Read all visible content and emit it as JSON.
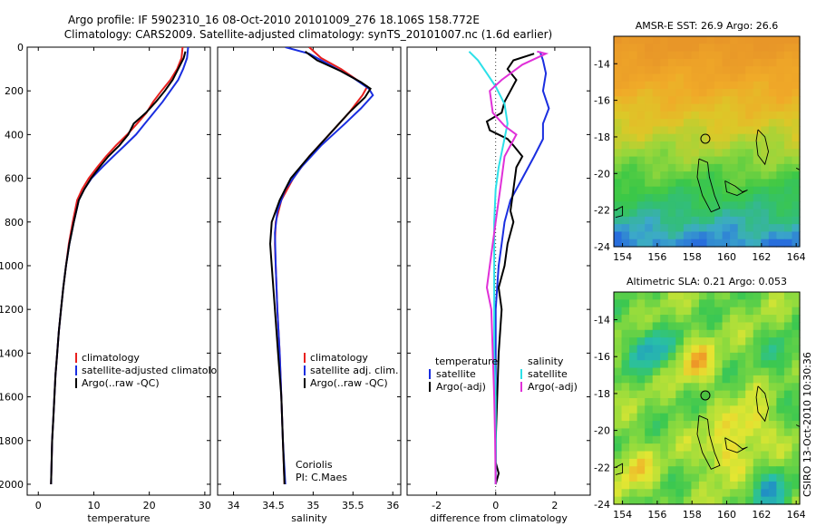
{
  "title": {
    "line1": "Argo profile: IF 5902310_16 08-Oct-2010 20101009_276 18.106S 158.772E",
    "line2": "Climatology: CARS2009. Satellite-adjusted climatology: synTS_20101007.nc (1.6d earlier)"
  },
  "side_text": "CSIRO 13-Oct-2010 10:30:36",
  "colors": {
    "red": "#e8201e",
    "blue": "#1a2ee0",
    "black": "#000000",
    "cyan": "#2ce0e8",
    "magenta": "#e030d8"
  },
  "chart_data": [
    {
      "type": "line",
      "panel": "temperature",
      "xlabel": "temperature",
      "ylabel": "",
      "xlim": [
        -2,
        31
      ],
      "ylim": [
        2050,
        0
      ],
      "xticks": [
        "0",
        "10",
        "20",
        "30"
      ],
      "yticks": [
        "0",
        "200",
        "400",
        "600",
        "800",
        "1000",
        "1200",
        "1400",
        "1600",
        "1800",
        "2000"
      ],
      "legend": [
        "climatology",
        "satellite-adjusted climatology",
        "Argo(..raw -QC)"
      ],
      "series": [
        {
          "name": "climatology",
          "color": "red",
          "points": [
            [
              26,
              0
            ],
            [
              25.8,
              50
            ],
            [
              25,
              100
            ],
            [
              23.8,
              150
            ],
            [
              22.2,
              200
            ],
            [
              20.7,
              250
            ],
            [
              19.5,
              300
            ],
            [
              17.8,
              350
            ],
            [
              16,
              400
            ],
            [
              14,
              450
            ],
            [
              12.2,
              500
            ],
            [
              10.6,
              550
            ],
            [
              9.1,
              600
            ],
            [
              7.9,
              650
            ],
            [
              7,
              700
            ],
            [
              6.2,
              800
            ],
            [
              5.5,
              900
            ],
            [
              5,
              1000
            ],
            [
              4.5,
              1100
            ],
            [
              4.1,
              1200
            ],
            [
              3.7,
              1300
            ],
            [
              3.4,
              1400
            ],
            [
              3.1,
              1500
            ],
            [
              2.9,
              1600
            ],
            [
              2.7,
              1700
            ],
            [
              2.5,
              1800
            ],
            [
              2.4,
              1900
            ],
            [
              2.3,
              2000
            ]
          ]
        },
        {
          "name": "satellite-adjusted climatology",
          "color": "blue",
          "points": [
            [
              27,
              0
            ],
            [
              26.8,
              50
            ],
            [
              26.1,
              100
            ],
            [
              25.2,
              150
            ],
            [
              23.8,
              200
            ],
            [
              22.4,
              250
            ],
            [
              20.8,
              300
            ],
            [
              19.2,
              350
            ],
            [
              17.6,
              400
            ],
            [
              15.6,
              450
            ],
            [
              13.5,
              500
            ],
            [
              11.5,
              550
            ],
            [
              9.6,
              600
            ],
            [
              8.3,
              650
            ],
            [
              7.3,
              700
            ],
            [
              6.4,
              800
            ],
            [
              5.6,
              900
            ],
            [
              5,
              1000
            ],
            [
              4.5,
              1100
            ],
            [
              4.1,
              1200
            ],
            [
              3.7,
              1300
            ],
            [
              3.4,
              1400
            ],
            [
              3.1,
              1500
            ],
            [
              2.9,
              1600
            ],
            [
              2.7,
              1700
            ],
            [
              2.5,
              1800
            ],
            [
              2.4,
              1900
            ],
            [
              2.3,
              2000
            ]
          ]
        },
        {
          "name": "Argo(..raw -QC)",
          "color": "black",
          "points": [
            [
              26.5,
              20
            ],
            [
              26.2,
              50
            ],
            [
              25.2,
              100
            ],
            [
              24.2,
              150
            ],
            [
              22.8,
              200
            ],
            [
              21.2,
              250
            ],
            [
              19.4,
              300
            ],
            [
              17.2,
              350
            ],
            [
              16.2,
              400
            ],
            [
              14.6,
              450
            ],
            [
              12.6,
              500
            ],
            [
              11,
              550
            ],
            [
              9.5,
              600
            ],
            [
              8.3,
              650
            ],
            [
              7.3,
              700
            ],
            [
              6.4,
              800
            ],
            [
              5.6,
              900
            ],
            [
              5,
              1000
            ],
            [
              4.5,
              1100
            ],
            [
              4.1,
              1200
            ],
            [
              3.7,
              1300
            ],
            [
              3.4,
              1400
            ],
            [
              3.1,
              1500
            ],
            [
              2.9,
              1600
            ],
            [
              2.7,
              1700
            ],
            [
              2.5,
              1800
            ],
            [
              2.4,
              1900
            ],
            [
              2.3,
              2000
            ]
          ]
        }
      ]
    },
    {
      "type": "line",
      "panel": "salinity",
      "xlabel": "salinity",
      "ylabel": "",
      "xlim": [
        33.8,
        36.1
      ],
      "ylim": [
        2050,
        0
      ],
      "xticks": [
        "34",
        "34.5",
        "35",
        "35.5",
        "36"
      ],
      "legend": [
        "climatology",
        "satellite adj. clim.",
        "Argo(..raw -QC)"
      ],
      "annotation": [
        "Coriolis",
        "PI: C.Maes"
      ],
      "series": [
        {
          "name": "climatology",
          "color": "red",
          "points": [
            [
              34.95,
              0
            ],
            [
              35.1,
              50
            ],
            [
              35.35,
              100
            ],
            [
              35.55,
              150
            ],
            [
              35.68,
              180
            ],
            [
              35.62,
              220
            ],
            [
              35.45,
              300
            ],
            [
              35.2,
              400
            ],
            [
              34.95,
              500
            ],
            [
              34.75,
              600
            ],
            [
              34.6,
              700
            ],
            [
              34.53,
              800
            ],
            [
              34.52,
              900
            ],
            [
              34.53,
              1000
            ],
            [
              34.55,
              1200
            ],
            [
              34.58,
              1400
            ],
            [
              34.6,
              1600
            ],
            [
              34.62,
              1800
            ],
            [
              34.64,
              2000
            ]
          ]
        },
        {
          "name": "satellite adj. clim.",
          "color": "blue",
          "points": [
            [
              34.65,
              0
            ],
            [
              34.95,
              30
            ],
            [
              35.2,
              80
            ],
            [
              35.5,
              140
            ],
            [
              35.7,
              190
            ],
            [
              35.75,
              220
            ],
            [
              35.6,
              280
            ],
            [
              35.4,
              350
            ],
            [
              35.1,
              450
            ],
            [
              34.85,
              550
            ],
            [
              34.65,
              650
            ],
            [
              34.55,
              750
            ],
            [
              34.52,
              850
            ],
            [
              34.53,
              1000
            ],
            [
              34.55,
              1200
            ],
            [
              34.58,
              1400
            ],
            [
              34.6,
              1600
            ],
            [
              34.62,
              1800
            ],
            [
              34.65,
              2000
            ]
          ]
        },
        {
          "name": "Argo(..raw -QC)",
          "color": "black",
          "points": [
            [
              34.9,
              20
            ],
            [
              35.05,
              60
            ],
            [
              35.35,
              110
            ],
            [
              35.6,
              160
            ],
            [
              35.72,
              190
            ],
            [
              35.65,
              230
            ],
            [
              35.45,
              300
            ],
            [
              35.2,
              400
            ],
            [
              34.95,
              500
            ],
            [
              34.72,
              600
            ],
            [
              34.58,
              700
            ],
            [
              34.48,
              800
            ],
            [
              34.46,
              900
            ],
            [
              34.48,
              1000
            ],
            [
              34.52,
              1200
            ],
            [
              34.56,
              1400
            ],
            [
              34.6,
              1600
            ],
            [
              34.62,
              1800
            ],
            [
              34.64,
              2000
            ]
          ]
        }
      ]
    },
    {
      "type": "line",
      "panel": "difference",
      "xlabel": "difference from climatology",
      "ylabel": "",
      "xlim": [
        -3,
        3.2
      ],
      "ylim": [
        2050,
        0
      ],
      "xticks": [
        "-2",
        "0",
        "2"
      ],
      "legend_left_title": "temperature",
      "legend_right_title": "salinity",
      "legend_left": [
        "satellite",
        "Argo(-adj)"
      ],
      "legend_right": [
        "satellite",
        "Argo(-adj)"
      ],
      "series": [
        {
          "name": "satellite",
          "group": "temperature",
          "color": "blue",
          "points": [
            [
              1.5,
              20
            ],
            [
              1.6,
              60
            ],
            [
              1.7,
              120
            ],
            [
              1.6,
              200
            ],
            [
              1.8,
              280
            ],
            [
              1.6,
              350
            ],
            [
              1.6,
              420
            ],
            [
              1.3,
              500
            ],
            [
              0.9,
              600
            ],
            [
              0.5,
              700
            ],
            [
              0.3,
              800
            ],
            [
              0.2,
              900
            ],
            [
              0.1,
              1000
            ],
            [
              0,
              1200
            ],
            [
              0,
              1400
            ],
            [
              0,
              1600
            ],
            [
              0,
              1800
            ],
            [
              0,
              2000
            ]
          ]
        },
        {
          "name": "Argo(-adj)",
          "group": "temperature",
          "color": "black",
          "points": [
            [
              1.3,
              30
            ],
            [
              0.6,
              60
            ],
            [
              0.4,
              100
            ],
            [
              0.7,
              150
            ],
            [
              0.5,
              200
            ],
            [
              0.3,
              250
            ],
            [
              0.2,
              300
            ],
            [
              -0.3,
              340
            ],
            [
              -0.2,
              380
            ],
            [
              0.4,
              420
            ],
            [
              0.6,
              450
            ],
            [
              0.9,
              500
            ],
            [
              0.7,
              550
            ],
            [
              0.6,
              650
            ],
            [
              0.5,
              750
            ],
            [
              0.6,
              800
            ],
            [
              0.4,
              900
            ],
            [
              0.3,
              1000
            ],
            [
              0.1,
              1100
            ],
            [
              0.2,
              1200
            ],
            [
              0.1,
              1400
            ],
            [
              0.05,
              1600
            ],
            [
              0,
              1800
            ],
            [
              0,
              1900
            ],
            [
              0.1,
              1950
            ],
            [
              0,
              2000
            ]
          ]
        },
        {
          "name": "satellite",
          "group": "salinity",
          "color": "cyan",
          "points": [
            [
              -0.9,
              20
            ],
            [
              -0.6,
              60
            ],
            [
              -0.3,
              120
            ],
            [
              0,
              180
            ],
            [
              0.3,
              260
            ],
            [
              0.4,
              350
            ],
            [
              0.25,
              450
            ],
            [
              0.1,
              550
            ],
            [
              0,
              650
            ],
            [
              -0.05,
              800
            ],
            [
              -0.05,
              1000
            ],
            [
              -0.05,
              1200
            ],
            [
              -0.05,
              1400
            ],
            [
              0,
              1600
            ],
            [
              0,
              1800
            ],
            [
              0,
              2000
            ]
          ]
        },
        {
          "name": "Argo(-adj)",
          "group": "salinity",
          "color": "magenta",
          "points": [
            [
              1.4,
              20
            ],
            [
              1.7,
              30
            ],
            [
              0.9,
              80
            ],
            [
              0.2,
              150
            ],
            [
              -0.2,
              200
            ],
            [
              -0.1,
              300
            ],
            [
              0.3,
              360
            ],
            [
              0.7,
              400
            ],
            [
              0.5,
              450
            ],
            [
              0.3,
              500
            ],
            [
              0.2,
              600
            ],
            [
              0.1,
              700
            ],
            [
              0,
              800
            ],
            [
              -0.2,
              1000
            ],
            [
              -0.3,
              1100
            ],
            [
              -0.15,
              1200
            ],
            [
              -0.1,
              1400
            ],
            [
              -0.05,
              1600
            ],
            [
              -0.02,
              1800
            ],
            [
              0,
              2000
            ]
          ]
        }
      ]
    },
    {
      "type": "heatmap",
      "panel": "sst-map",
      "title": "AMSR-E SST: 26.9 Argo: 26.6",
      "xlim": [
        153.5,
        164.2
      ],
      "ylim": [
        -24,
        -12.5
      ],
      "xticks": [
        "154",
        "156",
        "158",
        "160",
        "162",
        "164"
      ],
      "yticks": [
        "-14",
        "-16",
        "-18",
        "-20",
        "-22",
        "-24"
      ],
      "argo_position": [
        158.77,
        -18.1
      ]
    },
    {
      "type": "heatmap",
      "panel": "sla-map",
      "title": "Altimetric SLA: 0.21 Argo: 0.053",
      "xlim": [
        153.5,
        164.2
      ],
      "ylim": [
        -24,
        -12.5
      ],
      "xticks": [
        "154",
        "156",
        "158",
        "160",
        "162",
        "164"
      ],
      "yticks": [
        "-14",
        "-16",
        "-18",
        "-20",
        "-22",
        "-24"
      ],
      "argo_position": [
        158.77,
        -18.1
      ]
    }
  ]
}
